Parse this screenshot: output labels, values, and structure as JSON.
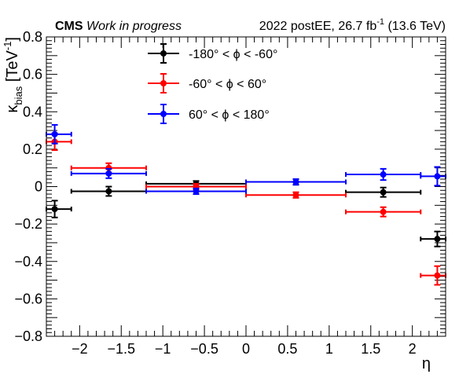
{
  "header": {
    "experiment": "CMS",
    "status": "Work in progress",
    "lumi_prefix": "2022 postEE, 26.7 fb",
    "lumi_sup": "-1",
    "lumi_suffix": " (13.6 TeV)"
  },
  "chart_data": {
    "type": "scatter",
    "xlabel": "η",
    "ylabel": {
      "main": "κ",
      "sub": "bias",
      "unit_prefix": " [TeV",
      "unit_sup": "-1",
      "unit_suffix": "]"
    },
    "xlim": [
      -2.4,
      2.4
    ],
    "ylim": [
      -0.8,
      0.8
    ],
    "x_ticks": [
      {
        "value": -2,
        "label": "−2"
      },
      {
        "value": -1.5,
        "label": "−1.5"
      },
      {
        "value": -1,
        "label": "−1"
      },
      {
        "value": -0.5,
        "label": "−0.5"
      },
      {
        "value": 0,
        "label": "0"
      },
      {
        "value": 0.5,
        "label": "0.5"
      },
      {
        "value": 1,
        "label": "1"
      },
      {
        "value": 1.5,
        "label": "1.5"
      },
      {
        "value": 2,
        "label": "2"
      }
    ],
    "y_ticks": [
      {
        "value": 0.8,
        "label": "0.8"
      },
      {
        "value": 0.6,
        "label": "0.6"
      },
      {
        "value": 0.4,
        "label": "0.4"
      },
      {
        "value": 0.2,
        "label": "0.2"
      },
      {
        "value": 0,
        "label": "0"
      },
      {
        "value": -0.2,
        "label": "−0.2"
      },
      {
        "value": -0.4,
        "label": "−0.4"
      },
      {
        "value": -0.6,
        "label": "−0.6"
      },
      {
        "value": -0.8,
        "label": "−0.8"
      }
    ],
    "legend_position": "top-center",
    "series": [
      {
        "name": "-180° < ϕ < -60°",
        "color": "#000000",
        "points": [
          {
            "x": -2.3,
            "y": -0.12,
            "xlo": -2.4,
            "xhi": -2.1,
            "yerr": 0.045
          },
          {
            "x": -1.65,
            "y": -0.025,
            "xlo": -2.1,
            "xhi": -1.2,
            "yerr": 0.025
          },
          {
            "x": -0.6,
            "y": 0.015,
            "xlo": -1.2,
            "xhi": 0.0,
            "yerr": 0.015
          },
          {
            "x": 0.6,
            "y": 0.025,
            "xlo": 0.0,
            "xhi": 1.2,
            "yerr": 0.015
          },
          {
            "x": 1.65,
            "y": -0.03,
            "xlo": 1.2,
            "xhi": 2.1,
            "yerr": 0.025
          },
          {
            "x": 2.3,
            "y": -0.28,
            "xlo": 2.1,
            "xhi": 2.4,
            "yerr": 0.04
          }
        ]
      },
      {
        "name": "-60° < ϕ < 60°",
        "color": "#ff0000",
        "points": [
          {
            "x": -2.3,
            "y": 0.24,
            "xlo": -2.4,
            "xhi": -2.1,
            "yerr": 0.045
          },
          {
            "x": -1.65,
            "y": 0.1,
            "xlo": -2.1,
            "xhi": -1.2,
            "yerr": 0.025
          },
          {
            "x": -0.6,
            "y": 0.0,
            "xlo": -1.2,
            "xhi": 0.0,
            "yerr": 0.015
          },
          {
            "x": 0.6,
            "y": -0.045,
            "xlo": 0.0,
            "xhi": 1.2,
            "yerr": 0.015
          },
          {
            "x": 1.65,
            "y": -0.135,
            "xlo": 1.2,
            "xhi": 2.1,
            "yerr": 0.025
          },
          {
            "x": 2.3,
            "y": -0.475,
            "xlo": 2.1,
            "xhi": 2.4,
            "yerr": 0.05
          }
        ]
      },
      {
        "name": "60° < ϕ < 180°",
        "color": "#0000ff",
        "points": [
          {
            "x": -2.3,
            "y": 0.28,
            "xlo": -2.4,
            "xhi": -2.1,
            "yerr": 0.05
          },
          {
            "x": -1.65,
            "y": 0.07,
            "xlo": -2.1,
            "xhi": -1.2,
            "yerr": 0.025
          },
          {
            "x": -0.6,
            "y": -0.025,
            "xlo": -1.2,
            "xhi": 0.0,
            "yerr": 0.015
          },
          {
            "x": 0.6,
            "y": 0.025,
            "xlo": 0.0,
            "xhi": 1.2,
            "yerr": 0.015
          },
          {
            "x": 1.65,
            "y": 0.065,
            "xlo": 1.2,
            "xhi": 2.1,
            "yerr": 0.03
          },
          {
            "x": 2.3,
            "y": 0.055,
            "xlo": 2.1,
            "xhi": 2.4,
            "yerr": 0.05
          }
        ]
      }
    ]
  }
}
